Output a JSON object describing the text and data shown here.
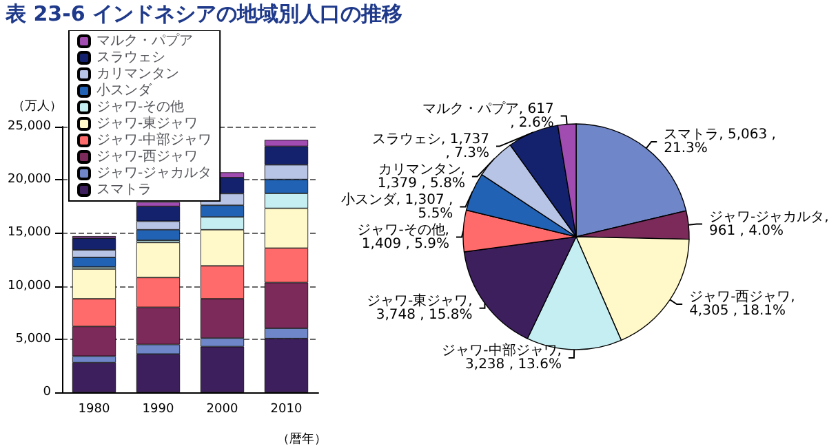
{
  "chart_data": [
    {
      "type": "bar",
      "title": "表 23-6 インドネシアの地域別人口の推移",
      "ylabel": "（万人）",
      "xlabel": "（暦年）",
      "stacked": true,
      "categories": [
        "1980",
        "1990",
        "2000",
        "2010"
      ],
      "series": [
        {
          "name": "スマトラ",
          "color": "#3d1f5e",
          "values": [
            2800,
            3600,
            4300,
            5063
          ]
        },
        {
          "name": "ジャワ-ジャカルタ",
          "color": "#6f86c8",
          "values": [
            600,
            900,
            800,
            961
          ]
        },
        {
          "name": "ジャワ-西ジャワ",
          "color": "#7b2a5a",
          "values": [
            2800,
            3500,
            3700,
            4305
          ]
        },
        {
          "name": "ジャワ-中部ジャワ",
          "color": "#ff6b6b",
          "values": [
            2600,
            2800,
            3100,
            3238
          ]
        },
        {
          "name": "ジャワ-東ジャワ",
          "color": "#fff8c8",
          "values": [
            2800,
            3300,
            3400,
            3748
          ]
        },
        {
          "name": "ジャワ-その他",
          "color": "#c4eef2",
          "values": [
            200,
            200,
            1200,
            1409
          ]
        },
        {
          "name": "小スンダ",
          "color": "#2262b4",
          "values": [
            900,
            1000,
            1100,
            1307
          ]
        },
        {
          "name": "カリマンタン",
          "color": "#b8c4e6",
          "values": [
            700,
            800,
            1100,
            1379
          ]
        },
        {
          "name": "スラウェシ",
          "color": "#14226e",
          "values": [
            1100,
            1400,
            1500,
            1737
          ]
        },
        {
          "name": "マルク・パプア",
          "color": "#a04cb0",
          "values": [
            200,
            400,
            500,
            617
          ]
        }
      ],
      "ylim": [
        0,
        25000
      ],
      "yticks": [
        0,
        {
          "value": 5000,
          "label": "5,000"
        },
        {
          "value": 10000,
          "label": "10,000"
        },
        {
          "value": 15000,
          "label": "15,000"
        },
        {
          "value": 20000,
          "label": "20,000"
        },
        {
          "value": 25000,
          "label": "25,000"
        }
      ],
      "grid": "y",
      "legend": "top left"
    },
    {
      "type": "pie",
      "categories": [
        "スマトラ",
        "ジャワ-ジャカルタ",
        "ジャワ-西ジャワ",
        "ジャワ-中部ジャワ",
        "ジャワ-東ジャワ",
        "ジャワ-その他",
        "小スンダ",
        "カリマンタン",
        "スラウェシ",
        "マルク・パプア"
      ],
      "values": [
        5063,
        961,
        4305,
        3238,
        3748,
        1409,
        1307,
        1379,
        1737,
        617
      ],
      "value_labels": [
        ", 5,063 , 21.3%",
        ", 961 , 4.0%",
        ", 4,305 , 18.1%",
        ", 3,238 , 13.6%",
        ", 3,748 , 15.8%",
        ", 1,409 , 5.9%",
        ", 1,307 , 5.5%",
        ", 1,379 , 5.8%",
        ", 1,737 , 7.3%",
        ", 617 , 2.6%"
      ],
      "colors": [
        "#6f86c8",
        "#7b2a5a",
        "#fff8c8",
        "#c4eef2",
        "#3d1f5e",
        "#ff6b6b",
        "#2262b4",
        "#b8c4e6",
        "#14226e",
        "#a04cb0"
      ]
    }
  ]
}
